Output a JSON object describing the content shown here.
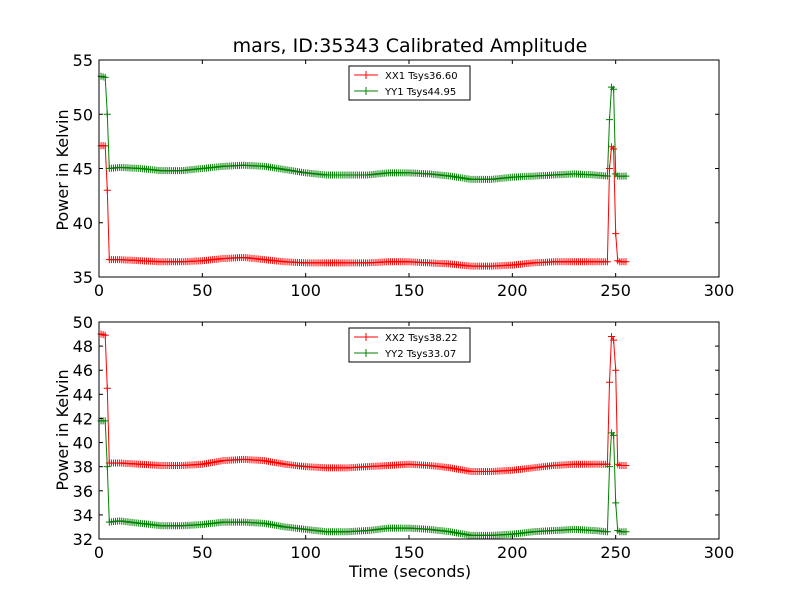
{
  "chart_data": [
    {
      "type": "line",
      "title": "mars, ID:35343 Calibrated Amplitude",
      "xlabel": "",
      "ylabel": "Power in Kelvin",
      "xlim": [
        0,
        300
      ],
      "ylim": [
        35,
        55
      ],
      "xticks": [
        "0",
        "50",
        "100",
        "150",
        "200",
        "250",
        "300"
      ],
      "yticks": [
        "35",
        "40",
        "45",
        "50",
        "55"
      ],
      "grid": false,
      "legend": "top-center",
      "series": [
        {
          "name": "XX1 Tsys36.60",
          "color": "#ff0000",
          "marker": "+",
          "x": [
            1,
            3,
            4,
            5,
            10,
            20,
            30,
            40,
            50,
            60,
            70,
            80,
            90,
            100,
            110,
            120,
            130,
            140,
            150,
            160,
            170,
            180,
            190,
            200,
            210,
            220,
            230,
            240,
            246,
            247,
            248,
            249,
            250,
            251,
            252,
            253,
            255
          ],
          "y": [
            47.1,
            47.1,
            43.0,
            36.6,
            36.6,
            36.5,
            36.4,
            36.4,
            36.5,
            36.7,
            36.8,
            36.6,
            36.4,
            36.3,
            36.3,
            36.3,
            36.3,
            36.4,
            36.4,
            36.3,
            36.2,
            36.0,
            36.0,
            36.1,
            36.3,
            36.4,
            36.4,
            36.4,
            36.4,
            45.0,
            47.0,
            46.8,
            39.0,
            36.5,
            36.4,
            36.4,
            36.4
          ]
        },
        {
          "name": "YY1 Tsys44.95",
          "color": "#008000",
          "marker": "+",
          "x": [
            1,
            3,
            4,
            5,
            10,
            20,
            30,
            40,
            50,
            60,
            70,
            80,
            90,
            100,
            110,
            120,
            130,
            140,
            150,
            160,
            170,
            180,
            190,
            200,
            210,
            220,
            230,
            240,
            246,
            247,
            248,
            249,
            250,
            251,
            252,
            253,
            255
          ],
          "y": [
            53.5,
            53.4,
            50.0,
            45.0,
            45.1,
            45.0,
            44.8,
            44.8,
            45.0,
            45.2,
            45.3,
            45.2,
            44.9,
            44.6,
            44.4,
            44.4,
            44.4,
            44.6,
            44.6,
            44.5,
            44.3,
            44.0,
            44.0,
            44.2,
            44.3,
            44.4,
            44.5,
            44.4,
            44.3,
            49.5,
            52.5,
            52.3,
            44.5,
            44.3,
            44.3,
            44.3,
            44.3
          ]
        }
      ]
    },
    {
      "type": "line",
      "title": "",
      "xlabel": "Time (seconds)",
      "ylabel": "Power in Kelvin",
      "xlim": [
        0,
        300
      ],
      "ylim": [
        32,
        50
      ],
      "xticks": [
        "0",
        "50",
        "100",
        "150",
        "200",
        "250",
        "300"
      ],
      "yticks": [
        "32",
        "34",
        "36",
        "38",
        "40",
        "42",
        "44",
        "46",
        "48",
        "50"
      ],
      "grid": false,
      "legend": "top-center",
      "series": [
        {
          "name": "XX2 Tsys38.22",
          "color": "#ff0000",
          "marker": "+",
          "x": [
            1,
            3,
            4,
            5,
            10,
            20,
            30,
            40,
            50,
            60,
            70,
            80,
            90,
            100,
            110,
            120,
            130,
            140,
            150,
            160,
            170,
            180,
            190,
            200,
            210,
            220,
            230,
            240,
            246,
            247,
            248,
            249,
            250,
            251,
            252,
            253,
            255
          ],
          "y": [
            49.0,
            48.9,
            44.5,
            38.3,
            38.3,
            38.2,
            38.1,
            38.1,
            38.2,
            38.5,
            38.6,
            38.5,
            38.2,
            38.0,
            37.9,
            37.9,
            38.0,
            38.1,
            38.2,
            38.1,
            37.9,
            37.6,
            37.6,
            37.7,
            37.9,
            38.1,
            38.2,
            38.2,
            38.2,
            45.0,
            48.8,
            48.5,
            46.0,
            38.2,
            38.1,
            38.1,
            38.1
          ]
        },
        {
          "name": "YY2 Tsys33.07",
          "color": "#008000",
          "marker": "+",
          "x": [
            1,
            3,
            4,
            5,
            10,
            20,
            30,
            40,
            50,
            60,
            70,
            80,
            90,
            100,
            110,
            120,
            130,
            140,
            150,
            160,
            170,
            180,
            190,
            200,
            210,
            220,
            230,
            240,
            246,
            247,
            248,
            249,
            250,
            251,
            252,
            253,
            255
          ],
          "y": [
            41.8,
            41.8,
            38.0,
            33.4,
            33.5,
            33.3,
            33.1,
            33.1,
            33.2,
            33.4,
            33.4,
            33.3,
            33.0,
            32.8,
            32.6,
            32.6,
            32.7,
            32.9,
            32.9,
            32.8,
            32.6,
            32.3,
            32.3,
            32.4,
            32.6,
            32.7,
            32.8,
            32.7,
            32.6,
            38.0,
            40.8,
            40.6,
            35.0,
            32.7,
            32.6,
            32.6,
            32.6
          ]
        }
      ]
    }
  ]
}
